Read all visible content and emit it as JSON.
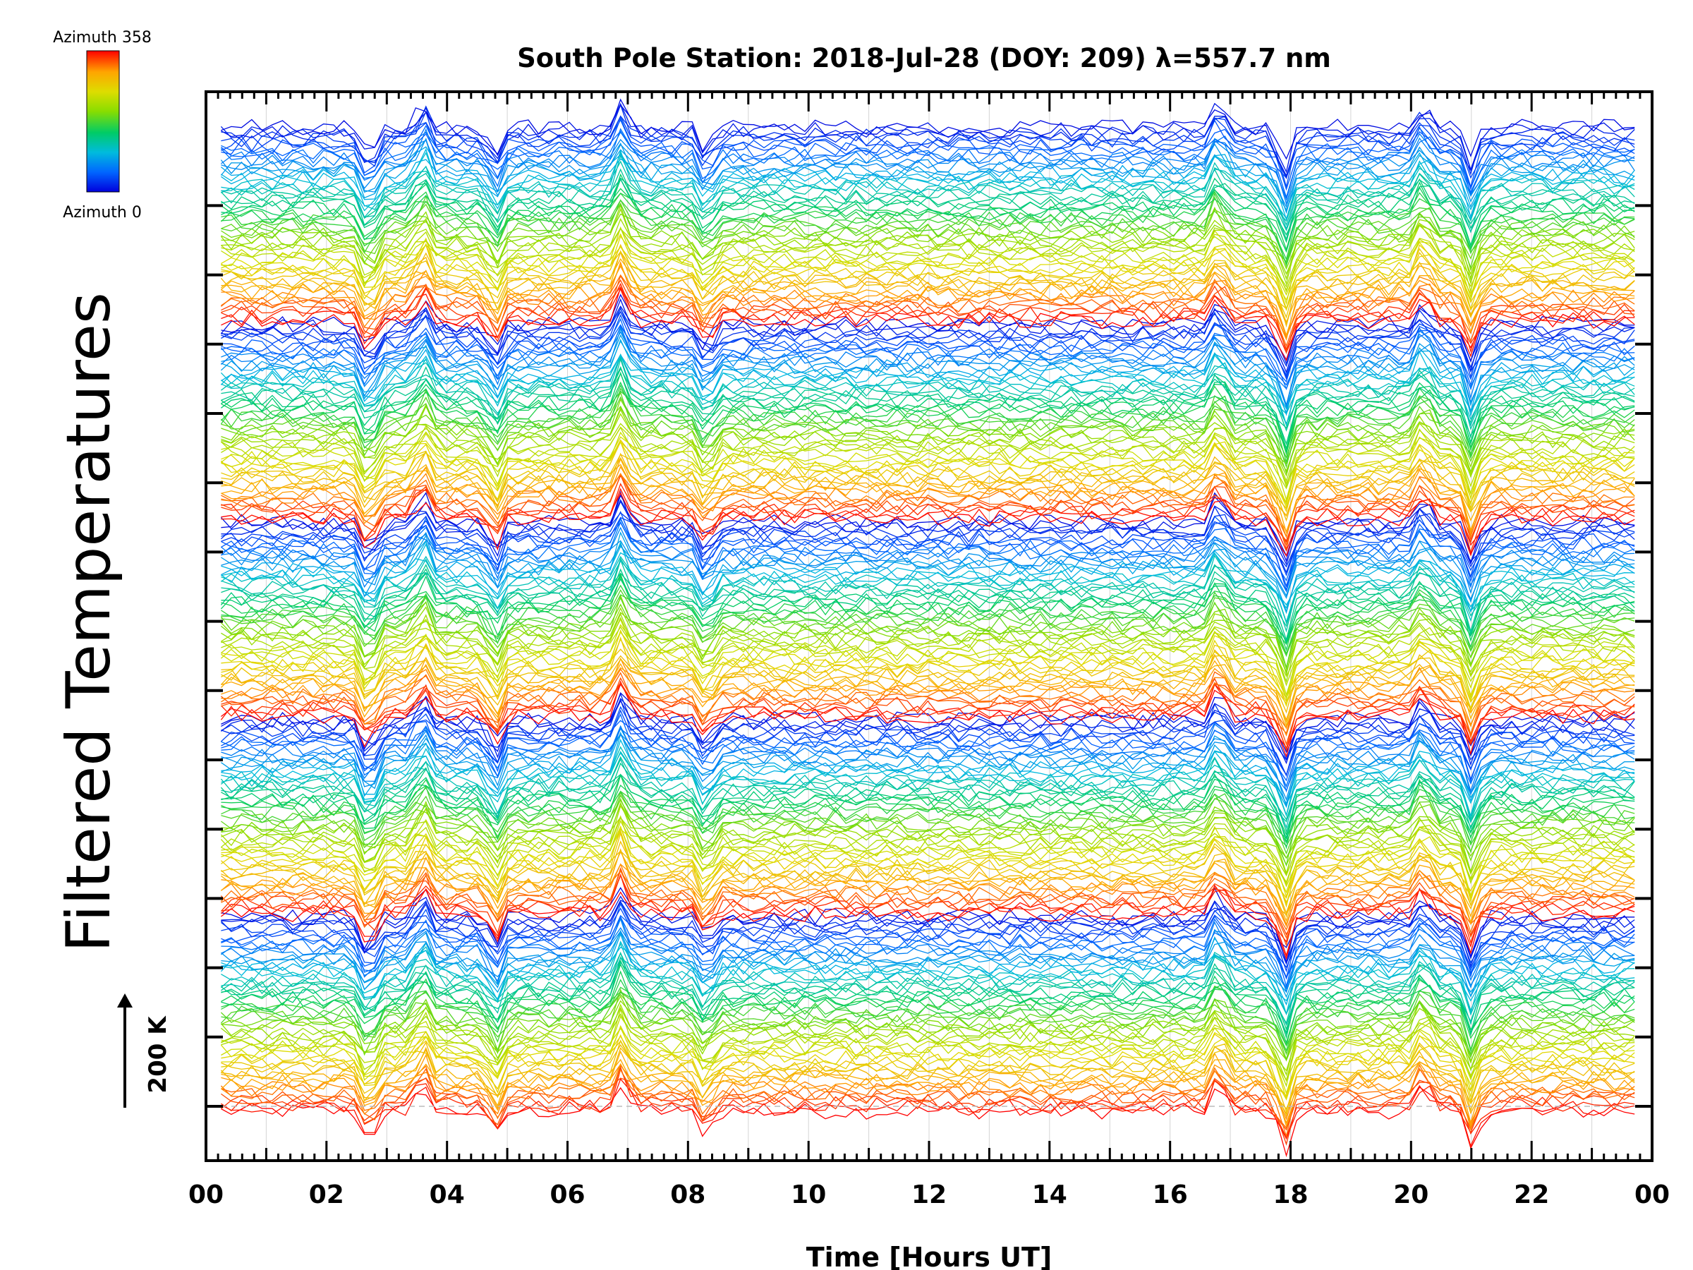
{
  "chart_data": {
    "type": "line",
    "title": "South Pole Station: 2018-Jul-28 (DOY: 209) λ=557.7 nm",
    "xlabel": "Time [Hours UT]",
    "ylabel": "Filtered Temperatures",
    "x_tick_labels": [
      "00",
      "02",
      "04",
      "06",
      "08",
      "10",
      "12",
      "14",
      "16",
      "18",
      "20",
      "22",
      "00"
    ],
    "xlim": [
      0,
      24
    ],
    "colorbar": {
      "top_label": "Azimuth 358",
      "bottom_label": "Azimuth 0",
      "colormap": "rainbow",
      "colors": [
        "#ff0000",
        "#ffa500",
        "#dddd00",
        "#88dd00",
        "#00cc66",
        "#00bbdd",
        "#0066ff",
        "#0000dd"
      ]
    },
    "scale_bar_label": "200 K",
    "grid": true,
    "series_count": 300,
    "series_layout": "stacked waterfall, baseline offset per series, colour by azimuth",
    "dominant_features_hours": [
      2.7,
      3.6,
      4.8,
      6.9,
      8.3,
      16.8,
      17.9,
      20.2,
      21.0
    ]
  }
}
